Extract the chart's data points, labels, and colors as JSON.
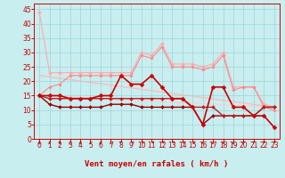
{
  "background_color": "#c8eef0",
  "grid_color": "#a0d4d8",
  "xlabel": "Vent moyen/en rafales ( km/h )",
  "xlabel_color": "#cc0000",
  "xlabel_fontsize": 6.5,
  "tick_color": "#cc0000",
  "tick_fontsize": 5.5,
  "ylim": [
    0,
    47
  ],
  "xlim": [
    -0.5,
    23.5
  ],
  "yticks": [
    0,
    5,
    10,
    15,
    20,
    25,
    30,
    35,
    40,
    45
  ],
  "xticks": [
    0,
    1,
    2,
    3,
    4,
    5,
    6,
    7,
    8,
    9,
    10,
    11,
    12,
    13,
    14,
    15,
    16,
    17,
    18,
    19,
    20,
    21,
    22,
    23
  ],
  "lines": [
    {
      "x": [
        0,
        1,
        2,
        3,
        4,
        5,
        6,
        7,
        8,
        9,
        10,
        11,
        12,
        13,
        14,
        15,
        16,
        17,
        18,
        19,
        20,
        21,
        22,
        23
      ],
      "y": [
        44,
        23,
        23,
        23,
        23,
        23,
        23,
        23,
        23,
        23,
        30,
        29,
        33,
        26,
        26,
        26,
        25,
        26,
        30,
        18,
        18,
        18,
        12,
        11
      ],
      "color": "#ffaaaa",
      "lw": 0.8,
      "marker": "D",
      "ms": 2.0,
      "zorder": 2
    },
    {
      "x": [
        0,
        1,
        2,
        3,
        4,
        5,
        6,
        7,
        8,
        9,
        10,
        11,
        12,
        13,
        14,
        15,
        16,
        17,
        18,
        19,
        20,
        21,
        22,
        23
      ],
      "y": [
        15,
        18,
        19,
        22,
        22,
        22,
        22,
        22,
        22,
        22,
        29,
        28,
        32,
        25,
        25,
        25,
        24,
        25,
        29,
        17,
        18,
        18,
        11,
        10
      ],
      "color": "#ff8888",
      "lw": 0.8,
      "marker": "D",
      "ms": 1.8,
      "zorder": 2
    },
    {
      "x": [
        0,
        23
      ],
      "y": [
        22,
        11
      ],
      "color": "#ffbbbb",
      "lw": 1.0,
      "marker": null,
      "ms": 0,
      "zorder": 1
    },
    {
      "x": [
        0,
        23
      ],
      "y": [
        15,
        11
      ],
      "color": "#ffcccc",
      "lw": 0.8,
      "marker": null,
      "ms": 0,
      "zorder": 1
    },
    {
      "x": [
        0,
        1,
        2,
        3,
        4,
        5,
        6,
        7,
        8,
        9,
        10,
        11,
        12,
        13,
        14,
        15,
        16,
        17,
        18,
        19,
        20,
        21,
        22,
        23
      ],
      "y": [
        15,
        15,
        15,
        14,
        14,
        14,
        15,
        15,
        22,
        19,
        19,
        22,
        18,
        14,
        14,
        11,
        5,
        18,
        18,
        11,
        11,
        8,
        8,
        4
      ],
      "color": "#cc0000",
      "lw": 1.2,
      "marker": "D",
      "ms": 2.5,
      "zorder": 4
    },
    {
      "x": [
        0,
        1,
        2,
        3,
        4,
        5,
        6,
        7,
        8,
        9,
        10,
        11,
        12,
        13,
        14,
        15,
        16,
        17,
        18,
        19,
        20,
        21,
        22,
        23
      ],
      "y": [
        15,
        12,
        11,
        11,
        11,
        11,
        11,
        12,
        12,
        12,
        11,
        11,
        11,
        11,
        11,
        11,
        5,
        8,
        8,
        8,
        8,
        8,
        11,
        11
      ],
      "color": "#990000",
      "lw": 1.0,
      "marker": "D",
      "ms": 2.0,
      "zorder": 3
    },
    {
      "x": [
        0,
        1,
        2,
        3,
        4,
        5,
        6,
        7,
        8,
        9,
        10,
        11,
        12,
        13,
        14,
        15,
        16,
        17,
        18,
        19,
        20,
        21,
        22,
        23
      ],
      "y": [
        15,
        14,
        14,
        14,
        14,
        14,
        14,
        14,
        14,
        14,
        14,
        14,
        14,
        14,
        14,
        11,
        11,
        11,
        8,
        8,
        8,
        8,
        11,
        11
      ],
      "color": "#bb2222",
      "lw": 1.0,
      "marker": "D",
      "ms": 2.0,
      "zorder": 3
    }
  ],
  "arrow_color": "#cc0000",
  "arrow_angles": [
    90,
    90,
    90,
    90,
    90,
    90,
    90,
    90,
    135,
    150,
    160,
    170,
    180,
    175,
    170,
    160,
    90,
    90,
    90,
    90,
    70,
    60,
    45,
    45
  ]
}
